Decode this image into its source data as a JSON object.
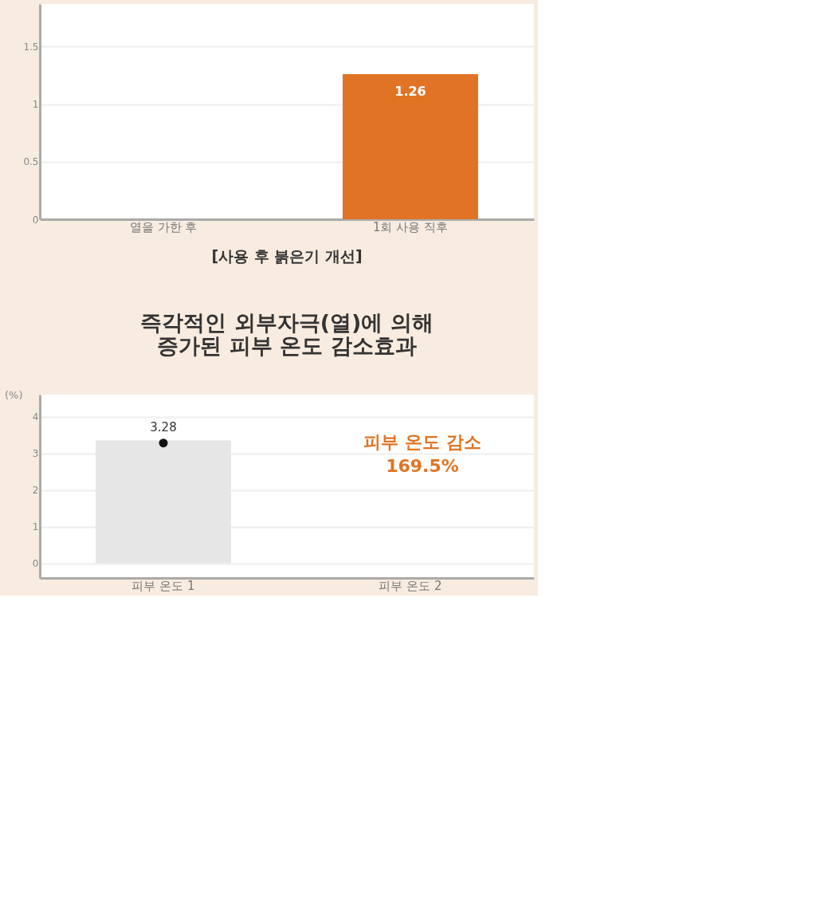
{
  "chart_data": [
    {
      "type": "bar",
      "categories": [
        "열을 가한 후",
        "1회 사용 직후"
      ],
      "values": [
        null,
        1.26
      ],
      "colors": [
        "#e6e6e6",
        "#e07424"
      ],
      "value_labels": [
        null,
        "1.26"
      ],
      "ylim": [
        0,
        1.87
      ],
      "yticks": [
        0,
        0.5,
        1,
        1.5
      ],
      "grid": "y",
      "annotations": [
        "[사용 후 붉은기 개선]"
      ]
    },
    {
      "type": "bar",
      "title": [
        "즉각적인 외부자극(열)에 의해",
        "증가된 피부 온도 감소효과"
      ],
      "ylabel": "(%)",
      "categories": [
        "피부 온도 1",
        "피부 온도 2"
      ],
      "ylim": [
        -0.4,
        4.6
      ],
      "yticks": [
        0,
        1,
        2,
        3,
        4
      ],
      "grid": "y",
      "annotations": [
        "피부 온도 감소 169.5%"
      ],
      "series": [
        {
          "type": "bar",
          "colors": [
            "#e6e6e6",
            "#e07424"
          ],
          "values": [
            3.35,
            null
          ]
        },
        {
          "type": "scatter",
          "color": "#111111",
          "values": [
            3.28,
            null
          ],
          "value_labels": [
            "3.28",
            null
          ],
          "marker": "circle"
        }
      ]
    }
  ]
}
